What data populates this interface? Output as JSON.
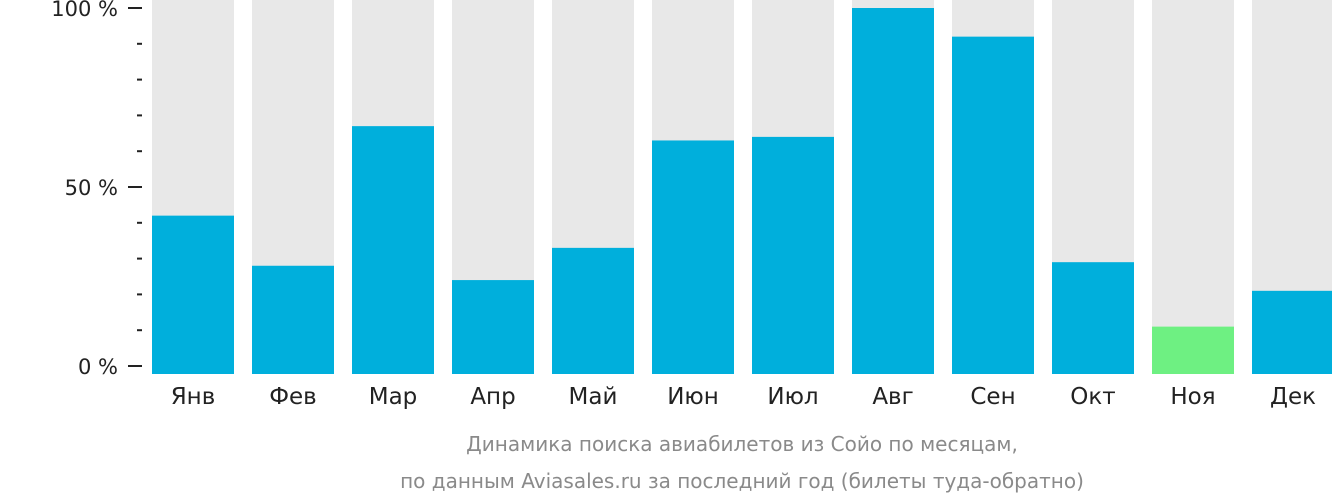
{
  "chart_data": {
    "type": "bar",
    "categories": [
      "Янв",
      "Фев",
      "Мар",
      "Апр",
      "Май",
      "Июн",
      "Июл",
      "Авг",
      "Сен",
      "Окт",
      "Ноя",
      "Дек"
    ],
    "values": [
      42,
      28,
      67,
      24,
      33,
      63,
      64,
      100,
      92,
      29,
      11,
      21
    ],
    "ylim": [
      0,
      100
    ],
    "y_ticks": [
      {
        "value": 0,
        "label": "0 %"
      },
      {
        "value": 50,
        "label": "50 %"
      },
      {
        "value": 100,
        "label": "100 %"
      }
    ],
    "y_minor_tick_step": 10,
    "highlight_index": 10,
    "colors": {
      "bar": "#00afdc",
      "highlight": "#6ef082",
      "background_bar": "#e8e8e8",
      "axis": "#222222",
      "caption": "#8a8a8a"
    },
    "caption": [
      "Динамика поиска авиабилетов из Сойо по месяцам,",
      "по данным Aviasales.ru за последний год (билеты туда-обратно)"
    ]
  }
}
